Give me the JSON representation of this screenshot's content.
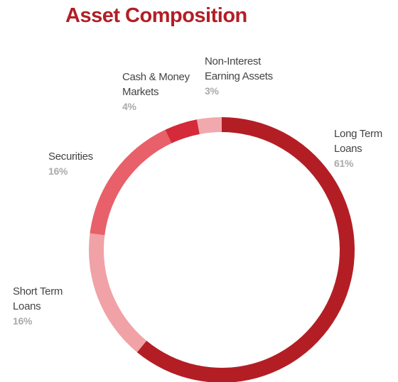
{
  "chart_data": {
    "type": "donut",
    "title": "Asset Composition",
    "categories": [
      "Long Term Loans",
      "Short Term Loans",
      "Securities",
      "Cash & Money Markets",
      "Non-Interest Earning Assets"
    ],
    "values": [
      61,
      16,
      16,
      4,
      3
    ],
    "value_labels": [
      "61%",
      "16%",
      "16%",
      "4%",
      "3%"
    ],
    "colors": [
      "#b31e25",
      "#f0a2a7",
      "#e8606a",
      "#d42a3a",
      "#f2a9ad"
    ]
  }
}
